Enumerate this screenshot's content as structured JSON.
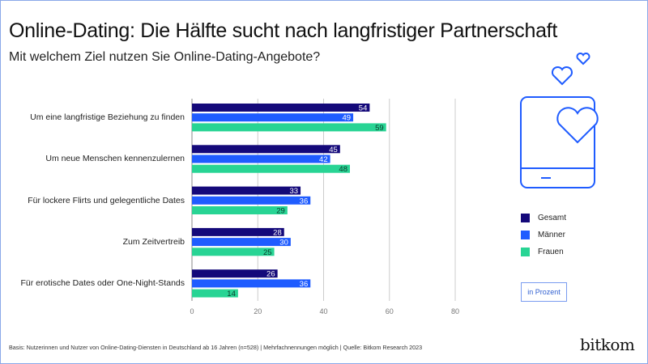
{
  "title": "Online-Dating: Die Hälfte sucht nach langfristiger Partnerschaft",
  "subtitle": "Mit welchem Ziel nutzen Sie Online-Dating-Angebote?",
  "chart_data": {
    "type": "bar",
    "orientation": "horizontal",
    "categories": [
      "Um eine langfristige Beziehung zu finden",
      "Um neue Menschen kennenzulernen",
      "Für lockere Flirts und gelegentliche Dates",
      "Zum Zeitvertreib",
      "Für erotische Dates oder One-Night-Stands"
    ],
    "series": [
      {
        "name": "Gesamt",
        "color": "#14097a",
        "values": [
          54,
          45,
          33,
          28,
          26
        ]
      },
      {
        "name": "Männer",
        "color": "#1f5cff",
        "values": [
          49,
          42,
          36,
          30,
          36
        ]
      },
      {
        "name": "Frauen",
        "color": "#28d494",
        "values": [
          59,
          48,
          29,
          25,
          14
        ]
      }
    ],
    "xlim": [
      0,
      80
    ],
    "xticks": [
      "0",
      "20",
      "40",
      "60",
      "80"
    ],
    "unit": "in Prozent",
    "grid": true,
    "legend": "right"
  },
  "note": "Basis: Nutzerinnen und Nutzer von Online-Dating-Diensten in Deutschland ab 16 Jahren  (n=528) | Mehrfachnennungen möglich | Quelle: Bitkom Research 2023",
  "logo": "bitkom",
  "icons": [
    "phone-heart-icon"
  ]
}
